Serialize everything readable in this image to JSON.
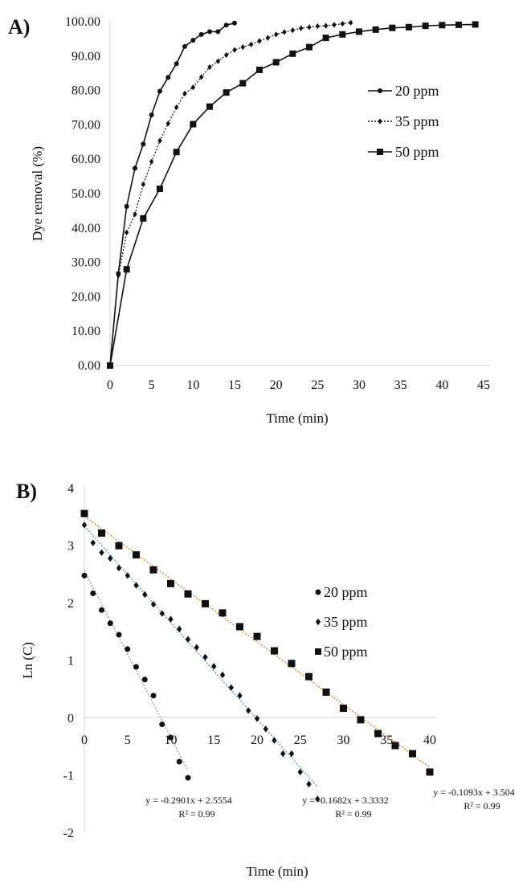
{
  "chart_data": [
    {
      "panel_label": "A)",
      "type": "line",
      "xlabel": "Time (min)",
      "ylabel": "Dye removal (%)",
      "xlim": [
        0,
        45
      ],
      "ylim": [
        0,
        100
      ],
      "xticks": [
        "0",
        "5",
        "10",
        "15",
        "20",
        "25",
        "30",
        "35",
        "40",
        "45"
      ],
      "yticks": [
        "0.00",
        "10.00",
        "20.00",
        "30.00",
        "40.00",
        "50.00",
        "60.00",
        "70.00",
        "80.00",
        "90.00",
        "100.00"
      ],
      "grid": false,
      "legend": "right",
      "series": [
        {
          "name": "20 ppm",
          "marker": "circle",
          "line": "solid",
          "color": "#111111",
          "x": [
            0,
            1,
            2,
            3,
            4,
            5,
            6,
            7,
            8,
            9,
            10,
            11,
            12,
            13,
            14,
            15
          ],
          "y": [
            0,
            26.8,
            46.3,
            57.4,
            64.4,
            72.9,
            79.8,
            83.8,
            87.8,
            92.8,
            94.6,
            96.3,
            97.1,
            97.1,
            99.0,
            99.6
          ]
        },
        {
          "name": "35 ppm",
          "marker": "diamond",
          "line": "dotted",
          "color": "#111111",
          "x": [
            0,
            1,
            2,
            3,
            4,
            5,
            6,
            7,
            8,
            9,
            10,
            11,
            12,
            13,
            14,
            15,
            16,
            17,
            18,
            19,
            20,
            21,
            22,
            23,
            24,
            25,
            26,
            27,
            28,
            29
          ],
          "y": [
            0,
            26.2,
            38.7,
            44.0,
            52.7,
            59.3,
            65.4,
            70.4,
            75.1,
            79.1,
            80.9,
            83.9,
            86.8,
            88.5,
            90.3,
            91.8,
            92.6,
            93.4,
            94.4,
            95.3,
            96.3,
            97.0,
            97.5,
            98.1,
            98.4,
            98.7,
            98.8,
            99.1,
            99.4,
            99.7
          ]
        },
        {
          "name": "50 ppm",
          "marker": "square",
          "line": "solid",
          "color": "#111111",
          "x": [
            0,
            2,
            4,
            6,
            8,
            10,
            12,
            14,
            16,
            18,
            20,
            22,
            24,
            26,
            28,
            30,
            32,
            34,
            36,
            38,
            40,
            42,
            44
          ],
          "y": [
            0,
            28.0,
            42.8,
            51.4,
            62.1,
            70.2,
            75.3,
            79.4,
            82.1,
            86.0,
            88.2,
            90.7,
            92.6,
            95.3,
            96.3,
            97.1,
            97.7,
            98.2,
            98.4,
            98.8,
            99.0,
            99.1,
            99.2
          ]
        }
      ]
    },
    {
      "panel_label": "B)",
      "type": "scatter",
      "xlabel": "Time (min)",
      "ylabel": "Ln (C)",
      "xlim": [
        0,
        40
      ],
      "ylim": [
        -2,
        4
      ],
      "xticks": [
        "0",
        "5",
        "10",
        "15",
        "20",
        "25",
        "30",
        "35",
        "40"
      ],
      "yticks": [
        "-2",
        "-1",
        "0",
        "1",
        "2",
        "3",
        "4"
      ],
      "grid": false,
      "legend": "right",
      "series": [
        {
          "name": "20 ppm",
          "marker": "circle",
          "trend_color": "#8ea3bf",
          "x": [
            0,
            1,
            2,
            3,
            4,
            5,
            6,
            7,
            8,
            9,
            10,
            11,
            12
          ],
          "y": [
            2.47,
            2.16,
            1.87,
            1.64,
            1.44,
            1.19,
            0.88,
            0.66,
            0.38,
            -0.12,
            -0.35,
            -0.77,
            -1.05
          ],
          "trendline": {
            "slope": -0.2901,
            "intercept": 2.5554,
            "equation": "y = -0.2901x  + 2.5554",
            "r2": "R² = 0.99"
          }
        },
        {
          "name": "35 ppm",
          "marker": "diamond",
          "trend_color": "#5b9bd5",
          "x": [
            0,
            1,
            2,
            3,
            4,
            5,
            6,
            7,
            8,
            9,
            10,
            11,
            12,
            13,
            14,
            15,
            16,
            17,
            18,
            19,
            20,
            21,
            22,
            23,
            24,
            25,
            26,
            27
          ],
          "y": [
            3.35,
            3.04,
            2.87,
            2.77,
            2.6,
            2.47,
            2.3,
            2.14,
            1.97,
            1.81,
            1.71,
            1.54,
            1.36,
            1.22,
            1.05,
            0.89,
            0.74,
            0.52,
            0.38,
            0.12,
            -0.02,
            -0.2,
            -0.4,
            -0.63,
            -0.63,
            -0.95,
            -1.16,
            -1.42
          ],
          "trendline": {
            "slope": -0.1682,
            "intercept": 3.3332,
            "equation": "y = -0.1682x  + 3.3332",
            "r2": "R² = 0.99"
          }
        },
        {
          "name": "50 ppm",
          "marker": "square",
          "trend_color": "#ed7d31",
          "x": [
            0,
            2,
            4,
            6,
            8,
            10,
            12,
            14,
            16,
            18,
            20,
            22,
            24,
            26,
            28,
            30,
            32,
            34,
            36,
            38,
            40
          ],
          "y": [
            3.55,
            3.21,
            2.99,
            2.83,
            2.57,
            2.33,
            2.15,
            1.98,
            1.82,
            1.58,
            1.41,
            1.16,
            0.94,
            0.71,
            0.44,
            0.16,
            -0.04,
            -0.28,
            -0.49,
            -0.63,
            -0.95
          ],
          "trendline": {
            "slope": -0.1093,
            "intercept": 3.504,
            "equation": "y = -0.1093x  + 3.504",
            "r2": "R² = 0.99"
          }
        }
      ]
    }
  ]
}
